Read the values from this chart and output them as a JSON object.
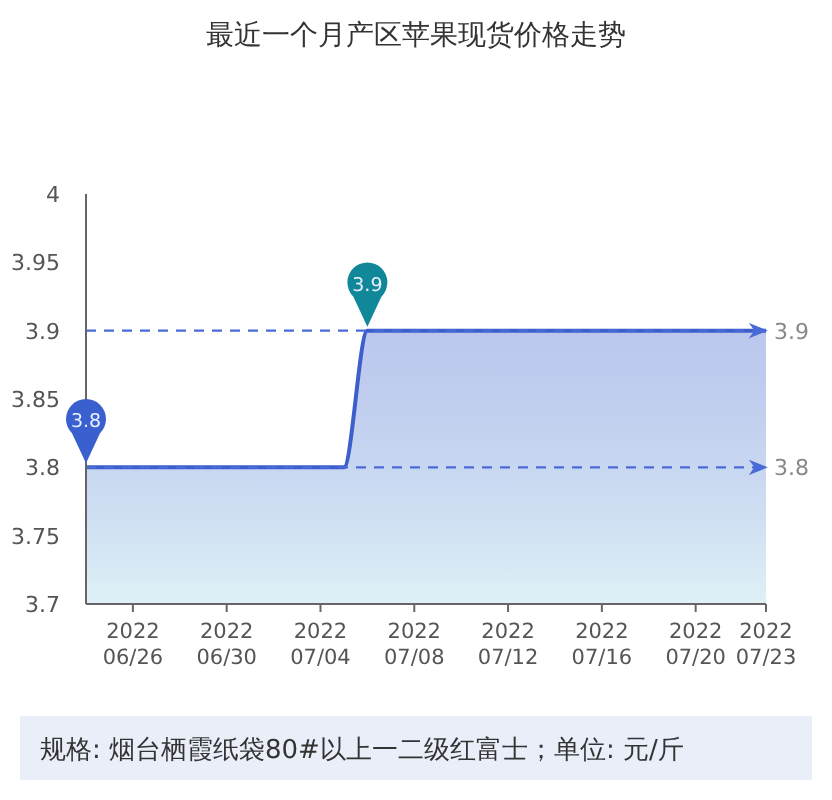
{
  "chart_data": {
    "type": "area",
    "title": "最近一个月产区苹果现货价格走势",
    "x": [
      "2022-06-24",
      "2022-07-05",
      "2022-07-06",
      "2022-07-23"
    ],
    "series": [
      {
        "color": "#3d5fcc",
        "values": [
          3.8,
          3.8,
          3.9,
          3.9
        ]
      }
    ],
    "xlim": [
      "2022-06-24",
      "2022-07-23"
    ],
    "xticks": [
      {
        "value": "2022-06-26",
        "label": "2022 06/26"
      },
      {
        "value": "2022-06-30",
        "label": "2022 06/30"
      },
      {
        "value": "2022-07-04",
        "label": "2022 07/04"
      },
      {
        "value": "2022-07-08",
        "label": "2022 07/08"
      },
      {
        "value": "2022-07-12",
        "label": "2022 07/12"
      },
      {
        "value": "2022-07-16",
        "label": "2022 07/16"
      },
      {
        "value": "2022-07-20",
        "label": "2022 07/20"
      },
      {
        "value": "2022-07-23",
        "label": "2022 07/23"
      }
    ],
    "ylim": [
      3.7,
      4
    ],
    "yticks": [
      3.7,
      3.75,
      3.8,
      3.85,
      3.9,
      3.95,
      4
    ],
    "grid": false,
    "marker": "none",
    "line_style": "solid",
    "ref_lines": [
      {
        "axis": "y",
        "value": 3.9,
        "label": "3.9",
        "color": "#4a6ad8",
        "line_style": "dashed"
      },
      {
        "axis": "y",
        "value": 3.8,
        "label": "3.8",
        "color": "#4a6ad8",
        "line_style": "dashed"
      }
    ],
    "annotations": [
      {
        "text": "3.8",
        "x": "2022-06-24",
        "y": 3.8
      },
      {
        "text": "3.9",
        "x": "2022-07-06",
        "y": 3.9
      },
      "规格: 烟台栖霞纸袋80#以上一二级红富士；单位: 元/斤"
    ]
  }
}
